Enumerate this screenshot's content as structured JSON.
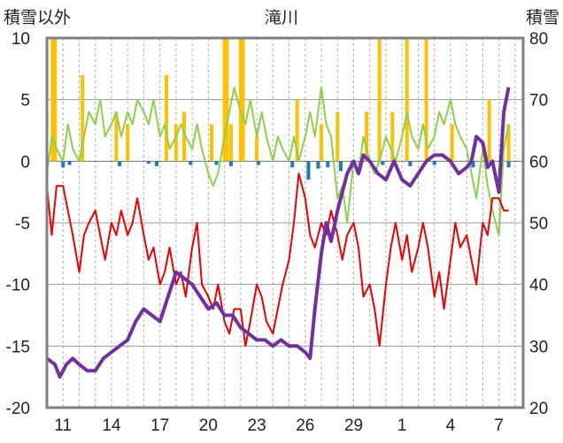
{
  "chart_data": {
    "type": "line",
    "title": "滝川",
    "y_left": {
      "label": "積雪以外",
      "range": [
        -20,
        10
      ],
      "ticks": [
        "10",
        "5",
        "0",
        "-5",
        "-10",
        "-15",
        "-20"
      ]
    },
    "y_right": {
      "label": "積雪",
      "range": [
        20,
        80
      ],
      "ticks": [
        "80",
        "70",
        "60",
        "50",
        "40",
        "30",
        "20"
      ]
    },
    "x_ticks": [
      "11",
      "14",
      "17",
      "20",
      "23",
      "26",
      "29",
      "1",
      "4",
      "7"
    ],
    "x_tick_days": [
      1,
      4,
      7,
      10,
      13,
      16,
      19,
      22,
      25,
      28
    ],
    "x_range_days": [
      0,
      29.5
    ],
    "grid": true,
    "series": [
      {
        "key": "max_temp",
        "color": "#8dd04a",
        "axis": "left",
        "points": [
          [
            0,
            -1
          ],
          [
            0.3,
            2
          ],
          [
            0.6,
            1
          ],
          [
            1,
            0
          ],
          [
            1.3,
            3
          ],
          [
            1.6,
            1
          ],
          [
            2,
            0
          ],
          [
            2.3,
            2
          ],
          [
            2.6,
            4
          ],
          [
            3,
            3
          ],
          [
            3.3,
            5
          ],
          [
            3.6,
            2
          ],
          [
            4,
            3
          ],
          [
            4.3,
            4
          ],
          [
            4.6,
            2
          ],
          [
            5,
            4
          ],
          [
            5.3,
            3
          ],
          [
            5.6,
            5
          ],
          [
            6,
            4
          ],
          [
            6.3,
            3
          ],
          [
            6.6,
            5
          ],
          [
            7,
            2
          ],
          [
            7.3,
            3
          ],
          [
            7.6,
            1
          ],
          [
            8,
            2
          ],
          [
            8.3,
            3
          ],
          [
            8.6,
            2
          ],
          [
            9,
            1
          ],
          [
            9.3,
            3
          ],
          [
            9.6,
            1
          ],
          [
            10,
            -1
          ],
          [
            10.3,
            -2
          ],
          [
            10.6,
            -1
          ],
          [
            11,
            2
          ],
          [
            11.3,
            4
          ],
          [
            11.6,
            6
          ],
          [
            12,
            4
          ],
          [
            12.3,
            3
          ],
          [
            12.6,
            5
          ],
          [
            13,
            2
          ],
          [
            13.3,
            4
          ],
          [
            13.6,
            2
          ],
          [
            14,
            0
          ],
          [
            14.3,
            2
          ],
          [
            14.6,
            1
          ],
          [
            15,
            0
          ],
          [
            15.3,
            2
          ],
          [
            15.6,
            0
          ],
          [
            16,
            2
          ],
          [
            16.3,
            4
          ],
          [
            16.6,
            2
          ],
          [
            17,
            6
          ],
          [
            17.3,
            3
          ],
          [
            17.6,
            2
          ],
          [
            18,
            -3
          ],
          [
            18.3,
            -2
          ],
          [
            18.6,
            -5
          ],
          [
            19,
            0
          ],
          [
            19.3,
            -1
          ],
          [
            19.6,
            2
          ],
          [
            20,
            0
          ],
          [
            20.3,
            -1
          ],
          [
            20.6,
            0
          ],
          [
            21,
            2
          ],
          [
            21.3,
            1
          ],
          [
            21.6,
            0
          ],
          [
            22,
            2
          ],
          [
            22.3,
            4
          ],
          [
            22.6,
            2
          ],
          [
            23,
            1
          ],
          [
            23.3,
            3
          ],
          [
            23.6,
            1
          ],
          [
            24,
            2
          ],
          [
            24.3,
            4
          ],
          [
            24.6,
            3
          ],
          [
            25,
            5
          ],
          [
            25.3,
            3
          ],
          [
            25.6,
            2
          ],
          [
            26,
            1
          ],
          [
            26.3,
            -1
          ],
          [
            26.6,
            -3
          ],
          [
            27,
            1
          ],
          [
            27.3,
            -2
          ],
          [
            27.6,
            -4
          ],
          [
            28,
            -6
          ],
          [
            28.3,
            1
          ],
          [
            28.6,
            3
          ]
        ]
      },
      {
        "key": "min_temp",
        "color": "#ee0000",
        "axis": "left",
        "points": [
          [
            0,
            -2
          ],
          [
            0.3,
            -6
          ],
          [
            0.6,
            -2
          ],
          [
            1,
            -2
          ],
          [
            1.3,
            -4
          ],
          [
            1.6,
            -6
          ],
          [
            2,
            -9
          ],
          [
            2.3,
            -6
          ],
          [
            2.6,
            -5
          ],
          [
            3,
            -4
          ],
          [
            3.3,
            -6
          ],
          [
            3.6,
            -8
          ],
          [
            4,
            -5
          ],
          [
            4.3,
            -6
          ],
          [
            4.6,
            -4
          ],
          [
            5,
            -6
          ],
          [
            5.3,
            -5
          ],
          [
            5.6,
            -3
          ],
          [
            6,
            -6
          ],
          [
            6.3,
            -8
          ],
          [
            6.6,
            -7
          ],
          [
            7,
            -10
          ],
          [
            7.3,
            -9
          ],
          [
            7.6,
            -7
          ],
          [
            8,
            -10
          ],
          [
            8.3,
            -9
          ],
          [
            8.6,
            -11
          ],
          [
            9,
            -7
          ],
          [
            9.3,
            -5
          ],
          [
            9.6,
            -10
          ],
          [
            10,
            -11
          ],
          [
            10.3,
            -12
          ],
          [
            10.6,
            -10
          ],
          [
            11,
            -13
          ],
          [
            11.3,
            -14
          ],
          [
            11.6,
            -12
          ],
          [
            12,
            -12
          ],
          [
            12.3,
            -15
          ],
          [
            12.6,
            -13
          ],
          [
            13,
            -10
          ],
          [
            13.3,
            -11
          ],
          [
            13.6,
            -13
          ],
          [
            14,
            -14
          ],
          [
            14.3,
            -12
          ],
          [
            14.6,
            -10
          ],
          [
            15,
            -8
          ],
          [
            15.3,
            -5
          ],
          [
            15.6,
            -1
          ],
          [
            16,
            -3
          ],
          [
            16.3,
            -6
          ],
          [
            16.6,
            -7
          ],
          [
            17,
            -5
          ],
          [
            17.3,
            -6
          ],
          [
            17.6,
            -4
          ],
          [
            18,
            -6
          ],
          [
            18.3,
            -8
          ],
          [
            18.6,
            -6
          ],
          [
            19,
            -5
          ],
          [
            19.3,
            -7
          ],
          [
            19.6,
            -11
          ],
          [
            20,
            -10
          ],
          [
            20.3,
            -12
          ],
          [
            20.6,
            -15
          ],
          [
            21,
            -10
          ],
          [
            21.3,
            -7
          ],
          [
            21.6,
            -5
          ],
          [
            22,
            -8
          ],
          [
            22.3,
            -6
          ],
          [
            22.6,
            -9
          ],
          [
            23,
            -7
          ],
          [
            23.3,
            -5
          ],
          [
            23.6,
            -7
          ],
          [
            24,
            -11
          ],
          [
            24.3,
            -9
          ],
          [
            24.6,
            -12
          ],
          [
            25,
            -8
          ],
          [
            25.3,
            -5
          ],
          [
            25.6,
            -7
          ],
          [
            26,
            -6
          ],
          [
            26.3,
            -8
          ],
          [
            26.6,
            -10
          ],
          [
            27,
            -5
          ],
          [
            27.3,
            -6
          ],
          [
            27.6,
            -3
          ],
          [
            28,
            -3
          ],
          [
            28.3,
            -4
          ],
          [
            28.6,
            -4
          ]
        ]
      },
      {
        "key": "snow_depth",
        "color": "#7030a0",
        "axis": "right",
        "points": [
          [
            0,
            28
          ],
          [
            0.5,
            27
          ],
          [
            0.8,
            25
          ],
          [
            1.2,
            27
          ],
          [
            1.6,
            28
          ],
          [
            2,
            27
          ],
          [
            2.5,
            26
          ],
          [
            3,
            26
          ],
          [
            3.5,
            28
          ],
          [
            4,
            29
          ],
          [
            4.5,
            30
          ],
          [
            5,
            31
          ],
          [
            5.5,
            34
          ],
          [
            6,
            36
          ],
          [
            6.5,
            35
          ],
          [
            7,
            34
          ],
          [
            7.5,
            38
          ],
          [
            8,
            42
          ],
          [
            8.5,
            41
          ],
          [
            9,
            40
          ],
          [
            9.5,
            38
          ],
          [
            10,
            36
          ],
          [
            10.5,
            37
          ],
          [
            11,
            35
          ],
          [
            11.5,
            35
          ],
          [
            12,
            33
          ],
          [
            12.5,
            32
          ],
          [
            13,
            31
          ],
          [
            13.5,
            31
          ],
          [
            14,
            30
          ],
          [
            14.5,
            31
          ],
          [
            15,
            30
          ],
          [
            15.5,
            30
          ],
          [
            16,
            29
          ],
          [
            16.3,
            28
          ],
          [
            16.6,
            36
          ],
          [
            17,
            45
          ],
          [
            17.3,
            50
          ],
          [
            17.6,
            47
          ],
          [
            18,
            52
          ],
          [
            18.3,
            55
          ],
          [
            18.6,
            58
          ],
          [
            19,
            60
          ],
          [
            19.3,
            58
          ],
          [
            19.6,
            61
          ],
          [
            20,
            60
          ],
          [
            20.5,
            58
          ],
          [
            21,
            57
          ],
          [
            21.5,
            60
          ],
          [
            22,
            57
          ],
          [
            22.5,
            56
          ],
          [
            23,
            58
          ],
          [
            23.5,
            60
          ],
          [
            24,
            61
          ],
          [
            24.5,
            61
          ],
          [
            25,
            60
          ],
          [
            25.5,
            58
          ],
          [
            26,
            59
          ],
          [
            26.3,
            60
          ],
          [
            26.6,
            64
          ],
          [
            27,
            63
          ],
          [
            27.3,
            59
          ],
          [
            27.6,
            60
          ],
          [
            28,
            55
          ],
          [
            28.3,
            68
          ],
          [
            28.6,
            72
          ]
        ]
      }
    ],
    "bars": [
      {
        "key": "precipitation",
        "color": "#ffc000",
        "axis": "left",
        "points": [
          [
            0.35,
            10
          ],
          [
            0.5,
            10
          ],
          [
            2.2,
            7
          ],
          [
            4.3,
            4
          ],
          [
            5,
            3
          ],
          [
            7.4,
            7
          ],
          [
            8,
            3
          ],
          [
            8.5,
            4
          ],
          [
            10.2,
            3
          ],
          [
            11,
            10
          ],
          [
            11.15,
            10
          ],
          [
            11.4,
            3
          ],
          [
            12,
            10
          ],
          [
            12.15,
            10
          ],
          [
            13,
            2
          ],
          [
            15.5,
            5
          ],
          [
            17,
            3
          ],
          [
            18,
            4
          ],
          [
            19.8,
            4
          ],
          [
            20.6,
            10
          ],
          [
            21.4,
            4
          ],
          [
            22.3,
            10
          ],
          [
            23.5,
            10
          ],
          [
            25.1,
            3
          ],
          [
            27.4,
            5
          ],
          [
            28.6,
            3
          ]
        ]
      },
      {
        "key": "snowfall_bar",
        "color": "#1f77b4",
        "axis": "left",
        "points": [
          [
            1,
            -0.5
          ],
          [
            1.4,
            -0.3
          ],
          [
            4.5,
            -0.4
          ],
          [
            6.3,
            -0.2
          ],
          [
            6.8,
            -0.4
          ],
          [
            8.9,
            -0.3
          ],
          [
            10.5,
            -0.3
          ],
          [
            11.4,
            -0.4
          ],
          [
            13.1,
            -0.3
          ],
          [
            15.2,
            -0.5
          ],
          [
            16.2,
            -1.5
          ],
          [
            16.8,
            -0.6
          ],
          [
            17.4,
            -0.5
          ],
          [
            18.2,
            -0.8
          ],
          [
            18.9,
            -0.4
          ],
          [
            19.4,
            -0.6
          ],
          [
            20.8,
            -0.3
          ],
          [
            22.5,
            -0.4
          ],
          [
            24,
            -0.3
          ],
          [
            26.4,
            -0.5
          ],
          [
            28.6,
            -0.5
          ]
        ]
      }
    ]
  }
}
